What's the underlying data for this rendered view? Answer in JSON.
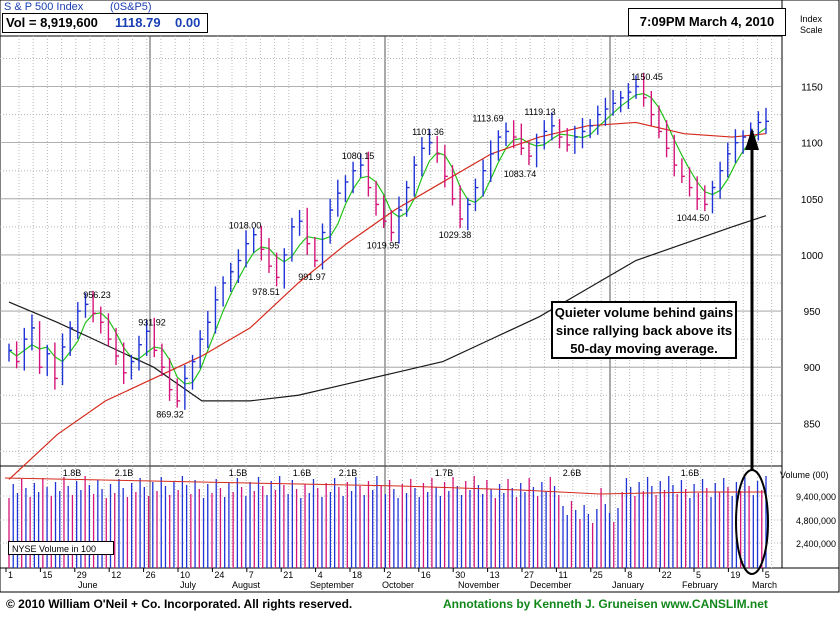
{
  "header": {
    "title": "S & P 500 Index",
    "ticker": "(0S&P5)",
    "volume_label": "Vol = 8,919,600",
    "last_price": "1118.79",
    "change": "0.00"
  },
  "timestamp": "7:09PM March 4, 2010",
  "scale_label": [
    "Index",
    "Scale"
  ],
  "annotation": [
    "Quieter volume behind gains",
    "since rallying back above its",
    "50-day moving average."
  ],
  "footer": {
    "copyright": "© 2010 William O'Neil + Co. Incorporated. All rights reserved.",
    "credit": "Annotations by Kenneth J. Gruneisen www.CANSLIM.net"
  },
  "colors": {
    "up": "#1f33d6",
    "down": "#d4147a",
    "ma50": "#d42a1c",
    "ma20": "#23c21a",
    "ma200": "#1a1a1a",
    "grid": "#b8b8b8"
  },
  "chart_data": {
    "type": "candlestick",
    "price_axis": {
      "ticks": [
        850,
        900,
        950,
        1000,
        1050,
        1100,
        1150
      ],
      "range": [
        812,
        1195
      ]
    },
    "volume_axis": {
      "label": "Volume (00)",
      "ticks": [
        "9,400,000",
        "4,800,000",
        "2,400,000"
      ]
    },
    "volume_legend": "NYSE Volume in 100",
    "x_day_labels": [
      "1",
      "15",
      "29",
      "12",
      "26",
      "10",
      "24",
      "7",
      "21",
      "4",
      "18",
      "2",
      "16",
      "30",
      "13",
      "27",
      "11",
      "25",
      "8",
      "22",
      "5",
      "19",
      "5"
    ],
    "x_month_labels": [
      "June",
      "July",
      "August",
      "September",
      "October",
      "November",
      "December",
      "January",
      "February",
      "March"
    ],
    "price_annotations": [
      {
        "label": "956.23",
        "value": 956.23
      },
      {
        "label": "931.92",
        "value": 931.92
      },
      {
        "label": "869.32",
        "value": 869.32
      },
      {
        "label": "1018.00",
        "value": 1018.0
      },
      {
        "label": "978.51",
        "value": 978.51
      },
      {
        "label": "991.97",
        "value": 991.97
      },
      {
        "label": "1080.15",
        "value": 1080.15
      },
      {
        "label": "1019.95",
        "value": 1019.95
      },
      {
        "label": "1101.36",
        "value": 1101.36
      },
      {
        "label": "1029.38",
        "value": 1029.38
      },
      {
        "label": "1113.69",
        "value": 1113.69
      },
      {
        "label": "1083.74",
        "value": 1083.74
      },
      {
        "label": "1119.13",
        "value": 1119.13
      },
      {
        "label": "1150.45",
        "value": 1150.45
      },
      {
        "label": "1044.50",
        "value": 1044.5
      }
    ],
    "volume_annotations": [
      "1.8B",
      "2.1B",
      "1.5B",
      "1.6B",
      "2.1B",
      "1.7B",
      "2.6B",
      "1.6B"
    ],
    "close_path": [
      915,
      905,
      925,
      935,
      900,
      912,
      890,
      918,
      935,
      950,
      956,
      948,
      940,
      925,
      910,
      895,
      905,
      920,
      932,
      915,
      900,
      880,
      870,
      890,
      905,
      925,
      940,
      960,
      975,
      985,
      995,
      1010,
      1018,
      1005,
      990,
      980,
      1000,
      1025,
      1030,
      1010,
      995,
      1020,
      1040,
      1055,
      1065,
      1075,
      1080,
      1060,
      1045,
      1030,
      1020,
      1040,
      1060,
      1080,
      1095,
      1100,
      1090,
      1070,
      1050,
      1032,
      1045,
      1060,
      1075,
      1090,
      1105,
      1110,
      1105,
      1095,
      1088,
      1100,
      1110,
      1115,
      1105,
      1098,
      1105,
      1110,
      1115,
      1125,
      1130,
      1135,
      1140,
      1145,
      1150,
      1140,
      1125,
      1110,
      1095,
      1080,
      1070,
      1060,
      1050,
      1045,
      1060,
      1075,
      1090,
      1100,
      1105,
      1110,
      1118,
      1119
    ],
    "ma_series": [
      {
        "name": "50-day",
        "points": [
          [
            0,
            800
          ],
          [
            10,
            840
          ],
          [
            20,
            870
          ],
          [
            30,
            890
          ],
          [
            40,
            910
          ],
          [
            50,
            935
          ],
          [
            60,
            975
          ],
          [
            70,
            1010
          ],
          [
            80,
            1040
          ],
          [
            90,
            1065
          ],
          [
            100,
            1090
          ],
          [
            110,
            1105
          ],
          [
            120,
            1115
          ],
          [
            130,
            1118
          ],
          [
            140,
            1108
          ],
          [
            150,
            1105
          ],
          [
            157,
            1108
          ]
        ]
      },
      {
        "name": "200-day",
        "points": [
          [
            0,
            958
          ],
          [
            10,
            940
          ],
          [
            20,
            920
          ],
          [
            30,
            900
          ],
          [
            40,
            870
          ],
          [
            50,
            870
          ],
          [
            60,
            875
          ],
          [
            70,
            885
          ],
          [
            80,
            895
          ],
          [
            90,
            905
          ],
          [
            100,
            925
          ],
          [
            110,
            945
          ],
          [
            120,
            970
          ],
          [
            130,
            995
          ],
          [
            140,
            1010
          ],
          [
            150,
            1025
          ],
          [
            157,
            1035
          ]
        ]
      }
    ],
    "grid": true,
    "legend": "none"
  }
}
